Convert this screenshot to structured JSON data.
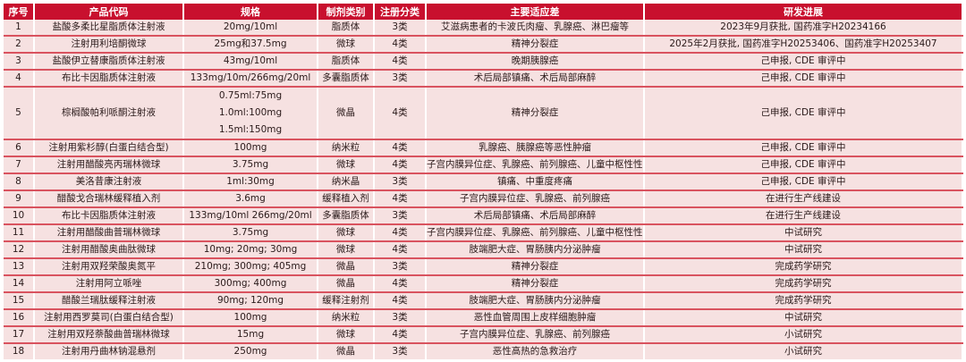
{
  "headers": [
    "序号",
    "产品代码",
    "规格",
    "制剂类别",
    "注册分类",
    "主要适应差",
    "研发进展"
  ],
  "colors": {
    "header_bg": "#c8102e",
    "row_bg": "#f6e1e1",
    "divider": "#d9535f"
  },
  "rows": [
    {
      "no": "1",
      "product": "盐酸多柔比星脂质体注射液",
      "spec": [
        "20mg/10ml"
      ],
      "form": "脂质体",
      "reg": "3类",
      "indication": "艾滋病患者的卡波氏肉瘤、乳腺癌、淋巴瘤等",
      "progress": "2023年9月获批, 国药准字H20234166"
    },
    {
      "no": "2",
      "product": "注射用利培酮微球",
      "spec": [
        "25mg和37.5mg"
      ],
      "form": "微球",
      "reg": "4类",
      "indication": "精神分裂症",
      "progress": "2025年2月获批, 国药准字H20253406、国药准字H20253407"
    },
    {
      "no": "3",
      "product": "盐酸伊立替康脂质体注射液",
      "spec": [
        "43mg/10ml"
      ],
      "form": "脂质体",
      "reg": "4类",
      "indication": "晚期胰腺癌",
      "progress": "己申报, CDE 审评中"
    },
    {
      "no": "4",
      "product": "布比卡因脂质体注射液",
      "spec": [
        "133mg/10m/266mg/20ml"
      ],
      "form": "多囊脂质体",
      "reg": "3类",
      "indication": "术后局部镇痛、术后局部麻醉",
      "progress": "己申报, CDE 审评中"
    },
    {
      "no": "5",
      "product": "棕榈酸帕利哌酮注射液",
      "spec": [
        "0.75ml:75mg",
        "1.0ml:100mg",
        "1.5ml:150mg"
      ],
      "form": "微晶",
      "reg": "4类",
      "indication": "精神分裂症",
      "progress": "己申报, CDE 审评中"
    },
    {
      "no": "6",
      "product": "注射用紫杉醇(白蛋白结合型)",
      "spec": [
        "100mg"
      ],
      "form": "纳米粒",
      "reg": "4类",
      "indication": "乳腺癌、胰腺癌等恶性肿瘤",
      "progress": "己申报, CDE 审评中"
    },
    {
      "no": "7",
      "product": "注射用醋酸亮丙瑞林微球",
      "spec": [
        "3.75mg"
      ],
      "form": "微球",
      "reg": "4类",
      "indication": "子宫内膜异位症、乳腺癌、前列腺癌、儿童中枢性性早熟",
      "progress": "己申报, CDE 审评中"
    },
    {
      "no": "8",
      "product": "美洛昔康注射液",
      "spec": [
        "1ml:30mg"
      ],
      "form": "纳米晶",
      "reg": "3类",
      "indication": "镇痛、中重度疼痛",
      "progress": "己申报, CDE 审评中"
    },
    {
      "no": "9",
      "product": "醋酸戈合瑞林缓释植入剂",
      "spec": [
        "3.6mg"
      ],
      "form": "缓释植入剂",
      "reg": "4类",
      "indication": "子宫内膜异位症、乳腺癌、前列腺癌",
      "progress": "在进行生产线建设"
    },
    {
      "no": "10",
      "product": "布比卡因脂质体注射液",
      "spec": [
        "133mg/10ml 266mg/20ml"
      ],
      "form": "多囊脂质体",
      "reg": "3类",
      "indication": "术后局部镇痛、术后局部麻醉",
      "progress": "在进行生产线建设"
    },
    {
      "no": "11",
      "product": "注射用醋酸曲普瑞林微球",
      "spec": [
        "3.75mg"
      ],
      "form": "微球",
      "reg": "4类",
      "indication": "子宫内膜异位症、乳腺癌、前列腺癌、儿童中枢性性早热",
      "progress": "中试研究"
    },
    {
      "no": "12",
      "product": "注射用醋酸奥曲肽微球",
      "spec": [
        "10mg; 20mg; 30mg"
      ],
      "form": "微球",
      "reg": "4类",
      "indication": "肢端肥大症、胃肠胰内分泌肿瘤",
      "progress": "中试研究"
    },
    {
      "no": "13",
      "product": "注射用双羟荣酸奥氮平",
      "spec": [
        "210mg; 300mg; 405mg"
      ],
      "form": "微晶",
      "reg": "3类",
      "indication": "精神分裂症",
      "progress": "完成药学研究"
    },
    {
      "no": "14",
      "product": "注射用阿立哌唑",
      "spec": [
        "300mg; 400mg"
      ],
      "form": "微晶",
      "reg": "4类",
      "indication": "精神分裂症",
      "progress": "完成药学研究"
    },
    {
      "no": "15",
      "product": "醋酸兰瑞肽缓释注射液",
      "spec": [
        "90mg; 120mg"
      ],
      "form": "缓释注射剂",
      "reg": "4类",
      "indication": "肢端肥大症、胃肠胰内分泌肿瘤",
      "progress": "完成药学研究"
    },
    {
      "no": "16",
      "product": "注射用西罗莫司(白蛋白结合型)",
      "spec": [
        "100mg"
      ],
      "form": "纳米粒",
      "reg": "3类",
      "indication": "恶性血管周围上皮样细胞肿瘤",
      "progress": "中试研究"
    },
    {
      "no": "17",
      "product": "注射用双羟萘酸曲普瑞林微球",
      "spec": [
        "15mg"
      ],
      "form": "微球",
      "reg": "4类",
      "indication": "子宫内膜异位症、乳腺癌、前列腺癌",
      "progress": "小试研究"
    },
    {
      "no": "18",
      "product": "注射用丹曲林钠混悬剂",
      "spec": [
        "250mg"
      ],
      "form": "微晶",
      "reg": "3类",
      "indication": "恶性高热的急救治疗",
      "progress": "小试研究"
    }
  ]
}
